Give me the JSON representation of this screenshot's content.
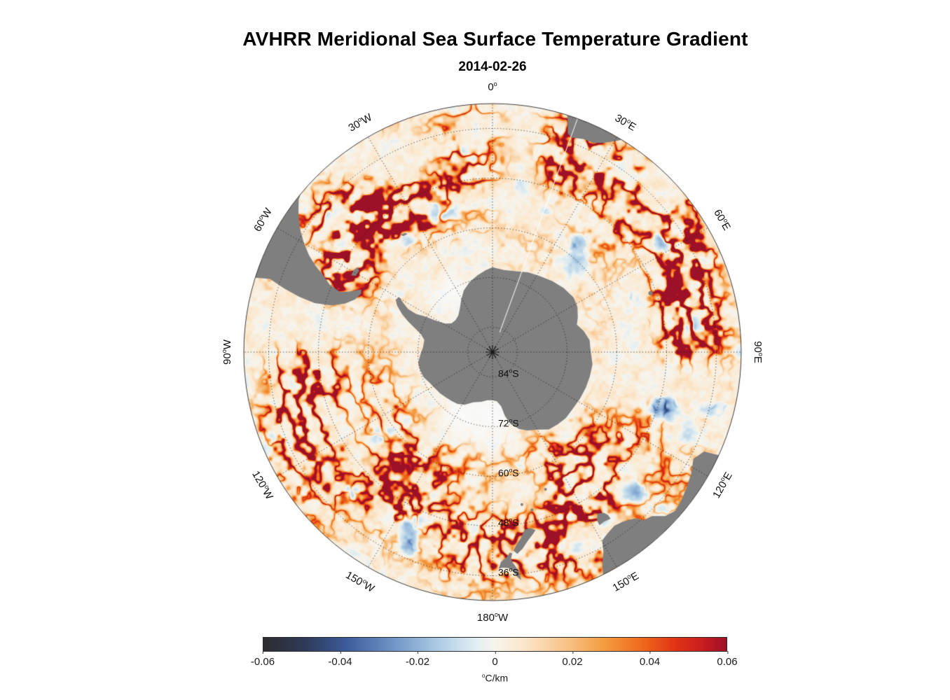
{
  "title": "AVHRR Meridional Sea Surface Temperature Gradient",
  "subtitle": "2014-02-26",
  "chart_data": {
    "type": "heatmap",
    "title": "AVHRR Meridional Sea Surface Temperature Gradient",
    "date": "2014-02-26",
    "projection": "south polar azimuthal centered on Antarctica, outer edge at 30S",
    "units": "°C/km",
    "value_range": [
      -0.06,
      0.06
    ],
    "land_color": "#7f7f7f",
    "background_color": "#ffffff",
    "colorbar": {
      "label": "°C/km",
      "min": -0.06,
      "max": 0.06,
      "ticks": [
        "-0.06",
        "-0.04",
        "-0.02",
        "0",
        "0.02",
        "0.04",
        "0.06"
      ],
      "stops": [
        {
          "pos": 0.0,
          "color": "#2d2d30"
        },
        {
          "pos": 0.09,
          "color": "#2e3a58"
        },
        {
          "pos": 0.18,
          "color": "#3d5c9b"
        },
        {
          "pos": 0.28,
          "color": "#6f94c6"
        },
        {
          "pos": 0.38,
          "color": "#aecde5"
        },
        {
          "pos": 0.46,
          "color": "#e2eef2"
        },
        {
          "pos": 0.5,
          "color": "#f7f4ec"
        },
        {
          "pos": 0.56,
          "color": "#fbe7cc"
        },
        {
          "pos": 0.66,
          "color": "#f7c083"
        },
        {
          "pos": 0.74,
          "color": "#f49a3d"
        },
        {
          "pos": 0.82,
          "color": "#ee671c"
        },
        {
          "pos": 0.89,
          "color": "#e03414"
        },
        {
          "pos": 0.95,
          "color": "#c81c20"
        },
        {
          "pos": 1.0,
          "color": "#9c1127"
        }
      ]
    },
    "longitude_labels": [
      {
        "label": "0°",
        "lon": 0
      },
      {
        "label": "30°E",
        "lon": 30
      },
      {
        "label": "60°E",
        "lon": 60
      },
      {
        "label": "90°E",
        "lon": 90
      },
      {
        "label": "120°E",
        "lon": 120
      },
      {
        "label": "150°E",
        "lon": 150
      },
      {
        "label": "180°W",
        "lon": 180
      },
      {
        "label": "150°W",
        "lon": -150
      },
      {
        "label": "120°W",
        "lon": -120
      },
      {
        "label": "90°W",
        "lon": -90
      },
      {
        "label": "60°W",
        "lon": -60
      },
      {
        "label": "30°W",
        "lon": -30
      }
    ],
    "latitude_labels": [
      {
        "label": "84°S",
        "lat": -84
      },
      {
        "label": "72°S",
        "lat": -72
      },
      {
        "label": "60°S",
        "lat": -60
      },
      {
        "label": "48°S",
        "lat": -48
      },
      {
        "label": "36°S",
        "lat": -36
      }
    ],
    "graticule": {
      "lat_circles": [
        -84,
        -72,
        -60,
        -48,
        -36
      ],
      "lon_step": 30,
      "style": "dotted"
    },
    "land_features": [
      "Antarctica",
      "southern South America",
      "Falkland Islands",
      "South Georgia",
      "southern Africa",
      "southern Australia",
      "Tasmania",
      "New Zealand",
      "Kerguelen"
    ],
    "field_description": "Mostly weak positive (pale cream-orange) meridional SST gradients over the Southern Ocean with intense positive (red) frontal filaments in the circumpolar band, strongest in the Agulhas Return Current sector (20E-90E) and near the Brazil-Malvinas confluence; scattered negative (blue) patches; near-white weak gradients around Antarctica."
  }
}
